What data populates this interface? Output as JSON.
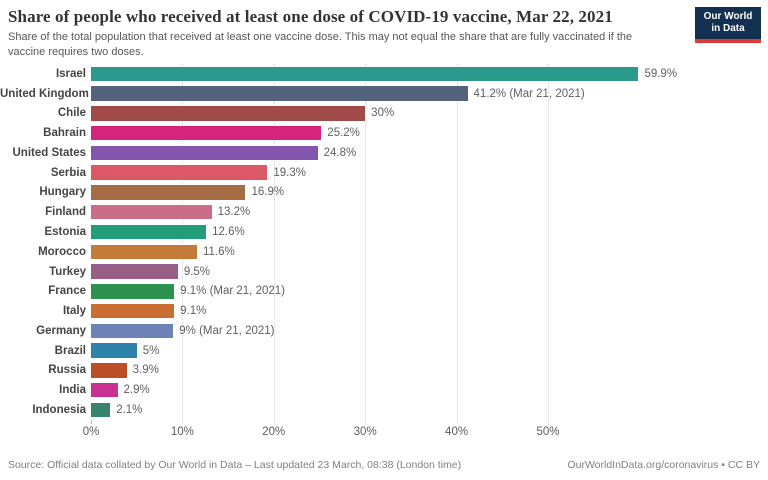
{
  "chart_data": {
    "type": "bar",
    "orientation": "horizontal",
    "title": "Share of people who received at least one dose of COVID-19 vaccine, Mar 22, 2021",
    "subtitle": "Share of the total population that received at least one vaccine dose. This may not equal the share that are fully vaccinated if the vaccine requires two doses.",
    "xlabel": "",
    "ylabel": "",
    "xlim": [
      0,
      73.2
    ],
    "grid": "vertical-dotted",
    "legend": "none",
    "bars": [
      {
        "label": "Israel",
        "value": 59.9,
        "value_label": "59.9%",
        "color": "#2a9a8c"
      },
      {
        "label": "United Kingdom",
        "value": 41.2,
        "value_label": "41.2% (Mar 21, 2021)",
        "color": "#53637b"
      },
      {
        "label": "Chile",
        "value": 30.0,
        "value_label": "30%",
        "color": "#a04a4a"
      },
      {
        "label": "Bahrain",
        "value": 25.2,
        "value_label": "25.2%",
        "color": "#d4247c"
      },
      {
        "label": "United States",
        "value": 24.8,
        "value_label": "24.8%",
        "color": "#8355af"
      },
      {
        "label": "Serbia",
        "value": 19.3,
        "value_label": "19.3%",
        "color": "#dd5867"
      },
      {
        "label": "Hungary",
        "value": 16.9,
        "value_label": "16.9%",
        "color": "#a56b43"
      },
      {
        "label": "Finland",
        "value": 13.2,
        "value_label": "13.2%",
        "color": "#ca6e87"
      },
      {
        "label": "Estonia",
        "value": 12.6,
        "value_label": "12.6%",
        "color": "#219e78"
      },
      {
        "label": "Morocco",
        "value": 11.6,
        "value_label": "11.6%",
        "color": "#c27b38"
      },
      {
        "label": "Turkey",
        "value": 9.5,
        "value_label": "9.5%",
        "color": "#975e86"
      },
      {
        "label": "France",
        "value": 9.1,
        "value_label": "9.1% (Mar 21, 2021)",
        "color": "#2d9150"
      },
      {
        "label": "Italy",
        "value": 9.1,
        "value_label": "9.1%",
        "color": "#c96d31"
      },
      {
        "label": "Germany",
        "value": 9.0,
        "value_label": "9% (Mar 21, 2021)",
        "color": "#6e83b5"
      },
      {
        "label": "Brazil",
        "value": 5.0,
        "value_label": "5%",
        "color": "#2e83ab"
      },
      {
        "label": "Russia",
        "value": 3.9,
        "value_label": "3.9%",
        "color": "#bc4e27"
      },
      {
        "label": "India",
        "value": 2.9,
        "value_label": "2.9%",
        "color": "#ca3092"
      },
      {
        "label": "Indonesia",
        "value": 2.1,
        "value_label": "2.1%",
        "color": "#3a8270"
      }
    ],
    "xticks": [
      {
        "value": 0,
        "label": "0%"
      },
      {
        "value": 10,
        "label": "10%"
      },
      {
        "value": 20,
        "label": "20%"
      },
      {
        "value": 30,
        "label": "30%"
      },
      {
        "value": 40,
        "label": "40%"
      },
      {
        "value": 50,
        "label": "50%"
      }
    ]
  },
  "branding": {
    "logo_line1": "Our World",
    "logo_line2": "in Data",
    "logo_bg_color": "#12304f",
    "logo_stripe_color": "#dc3b32"
  },
  "footer": {
    "source": "Source: Official data collated by Our World in Data – Last updated 23 March, 08:38 (London time)",
    "link": "OurWorldInData.org/coronavirus • CC BY"
  }
}
